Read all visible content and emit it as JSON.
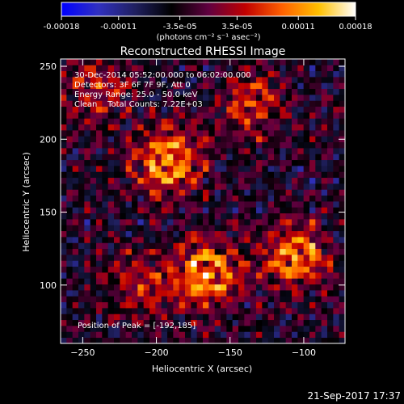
{
  "chart_data": {
    "type": "heatmap",
    "title": "Reconstructed RHESSI Image",
    "xlabel": "Heliocentric X (arcsec)",
    "ylabel": "Heliocentric Y (arcsec)",
    "xlim": [
      -265,
      -72
    ],
    "ylim": [
      60,
      255
    ],
    "x_ticks": [
      -250,
      -200,
      -150,
      -100
    ],
    "y_ticks": [
      100,
      150,
      200,
      250
    ],
    "colorbar": {
      "ticks": [
        "-0.00018",
        "-0.00011",
        "-3.5e-05",
        "3.5e-05",
        "0.00011",
        "0.00018"
      ],
      "values": [
        -0.00018,
        -0.00011,
        -3.5e-05,
        3.5e-05,
        0.00011,
        0.00018
      ],
      "unit_label": "(photons cm⁻² s⁻¹ asec⁻²)"
    },
    "grid_size": 48,
    "sources": [
      {
        "x": -192,
        "y": 185,
        "strength": 1.0
      },
      {
        "x": -165,
        "y": 108,
        "strength": 0.95
      },
      {
        "x": -105,
        "y": 120,
        "strength": 0.9
      },
      {
        "x": -135,
        "y": 225,
        "strength": 0.6
      },
      {
        "x": -240,
        "y": 235,
        "strength": 0.55
      },
      {
        "x": -210,
        "y": 100,
        "strength": 0.5
      }
    ]
  },
  "annotations": {
    "line1": "30-Dec-2014 05:52:00.000 to 06:02:00.000",
    "line2": "Detectors: 3F 6F 7F 9F, Att 0",
    "line3": "Energy Range: 25.0 - 50.0 keV",
    "line4": "Clean    Total Counts: 7.22E+03",
    "peak": "Position of Peak = [-192,185]"
  },
  "footer_date": "21-Sep-2017 17:37",
  "colors": {
    "background": "#000000",
    "text": "#ffffff",
    "colormap": [
      "#0000ff",
      "#3030c0",
      "#202060",
      "#000000",
      "#600040",
      "#c00000",
      "#ff6000",
      "#ffc000",
      "#ffffff"
    ]
  }
}
